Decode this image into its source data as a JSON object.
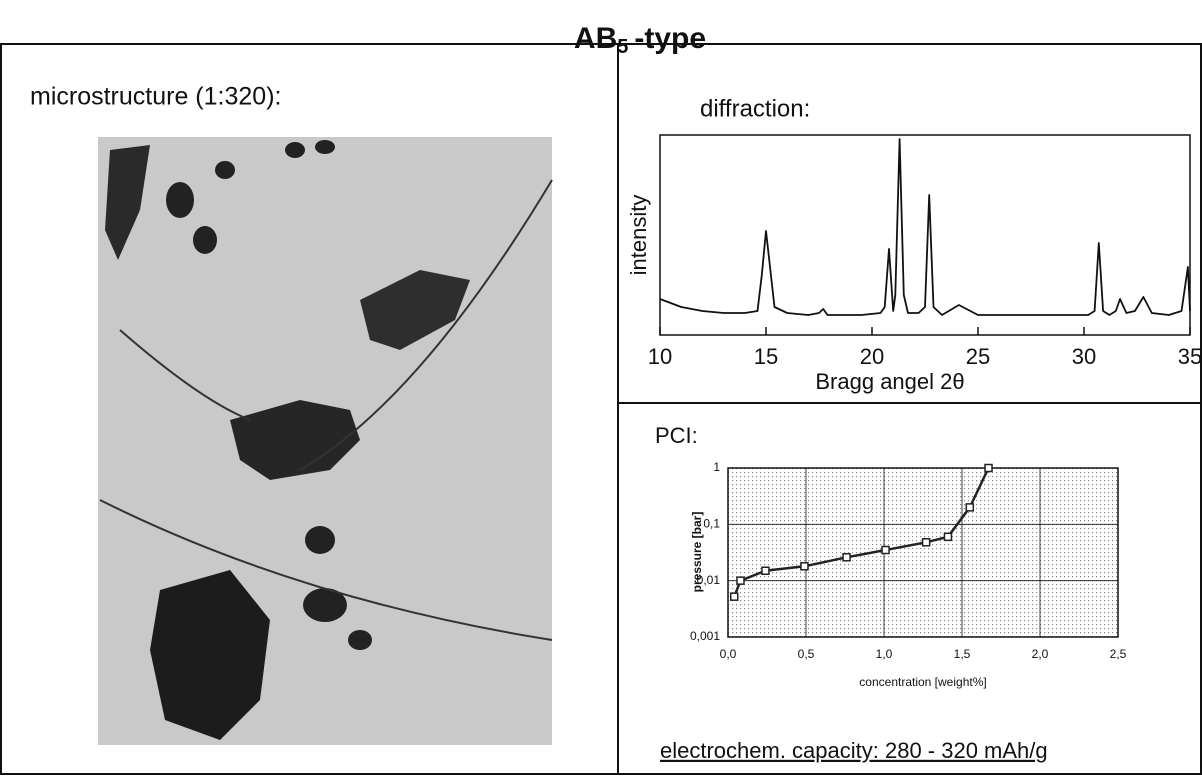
{
  "title": {
    "main": "AB",
    "subscript": "5",
    "suffix": "-type"
  },
  "microstructure": {
    "label": "microstructure (1:320):"
  },
  "capacity": "electrochem. capacity:  280 - 320 mAh/g",
  "chart_data": [
    {
      "type": "line",
      "title": "diffraction:",
      "xlabel": "Bragg angel 2θ",
      "ylabel": "intensity",
      "color": "#111111",
      "x": [
        10,
        11,
        12,
        13,
        14,
        14.6,
        14.8,
        15.0,
        15.4,
        16,
        17,
        17.5,
        17.7,
        17.9,
        18.5,
        19.5,
        20.4,
        20.6,
        20.8,
        21.0,
        21.1,
        21.3,
        21.5,
        21.7,
        22.2,
        22.5,
        22.7,
        22.9,
        23.3,
        24.1,
        25,
        26,
        27,
        28,
        29,
        30.2,
        30.5,
        30.7,
        30.9,
        31.2,
        31.5,
        31.7,
        32,
        32.4,
        32.8,
        33.2,
        34,
        34.6,
        34.9,
        35
      ],
      "values": [
        18,
        14,
        12,
        11,
        11,
        12,
        30,
        52,
        14,
        11,
        10,
        11,
        13,
        10,
        10,
        10,
        11,
        14,
        43,
        12,
        20,
        98,
        20,
        11,
        11,
        14,
        70,
        14,
        10,
        15,
        10,
        10,
        10,
        10,
        10,
        10,
        12,
        46,
        12,
        10,
        12,
        18,
        11,
        12,
        19,
        11,
        10,
        12,
        34,
        12
      ],
      "xlim": [
        10,
        35
      ],
      "xticks": [
        10,
        15,
        20,
        25,
        30,
        35
      ],
      "ylim": [
        0,
        100
      ]
    },
    {
      "type": "line",
      "title": "PCI:",
      "xlabel": "concentration [weight%]",
      "ylabel": "pressure [bar]",
      "color": "#222222",
      "yscale": "log",
      "grid": true,
      "x": [
        0.04,
        0.08,
        0.24,
        0.49,
        0.76,
        1.01,
        1.27,
        1.41,
        1.55,
        1.67
      ],
      "values": [
        0.0052,
        0.01,
        0.015,
        0.018,
        0.026,
        0.035,
        0.048,
        0.06,
        0.2,
        1.0
      ],
      "xlim": [
        0,
        2.5
      ],
      "xticks": [
        {
          "value": 0,
          "label": "0,0"
        },
        {
          "value": 0.5,
          "label": "0,5"
        },
        {
          "value": 1,
          "label": "1,0"
        },
        {
          "value": 1.5,
          "label": "1,5"
        },
        {
          "value": 2,
          "label": "2,0"
        },
        {
          "value": 2.5,
          "label": "2,5"
        }
      ],
      "ylim": [
        0.001,
        1
      ],
      "yticks": [
        {
          "value": 0.001,
          "label": "0,001"
        },
        {
          "value": 0.01,
          "label": "0,01"
        },
        {
          "value": 0.1,
          "label": "0,1"
        },
        1
      ]
    }
  ]
}
